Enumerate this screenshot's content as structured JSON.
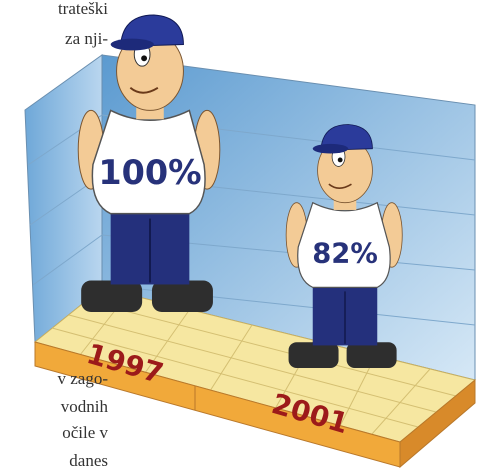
{
  "page_text": [
    "trateški",
    "za nji-",
    "v zago-",
    "vodnih",
    "očile v",
    "danes"
  ],
  "chart_data": {
    "type": "pictogram",
    "categories": [
      "1997",
      "2001"
    ],
    "values": [
      100,
      82
    ],
    "value_labels": [
      "100%",
      "82%"
    ]
  }
}
